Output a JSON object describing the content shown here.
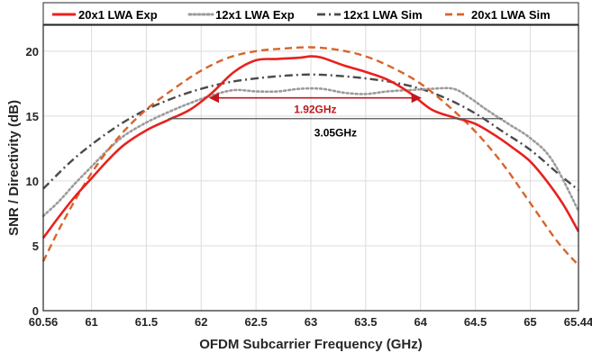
{
  "chart_data": {
    "type": "line",
    "xlabel": "OFDM Subcarrier Frequency (GHz)",
    "ylabel": "SNR / Directivity (dB)",
    "xlim": [
      60.56,
      65.44
    ],
    "ylim": [
      0,
      22
    ],
    "xticks": [
      60.56,
      61,
      61.5,
      62,
      62.5,
      63,
      63.5,
      64,
      64.5,
      65,
      65.44
    ],
    "xtick_labels": [
      "60.56",
      "61",
      "61.5",
      "62",
      "62.5",
      "63",
      "63.5",
      "64",
      "64.5",
      "65",
      "65.44"
    ],
    "yticks": [
      0,
      5,
      10,
      15,
      20
    ],
    "ytick_labels": [
      "0",
      "5",
      "10",
      "15",
      "20"
    ],
    "grid": true,
    "legend_position": "top",
    "series": [
      {
        "name": "20x1 LWA Exp",
        "color": "#e8211d",
        "style": "solid",
        "x": [
          60.56,
          60.7,
          60.85,
          61.0,
          61.15,
          61.3,
          61.5,
          61.7,
          61.9,
          62.1,
          62.3,
          62.5,
          62.7,
          62.9,
          63.0,
          63.1,
          63.3,
          63.5,
          63.7,
          63.9,
          64.1,
          64.3,
          64.5,
          64.7,
          64.85,
          65.0,
          65.15,
          65.3,
          65.44
        ],
        "y": [
          5.6,
          7.2,
          8.8,
          10.2,
          11.6,
          12.8,
          13.9,
          14.7,
          15.5,
          16.8,
          18.4,
          19.3,
          19.4,
          19.5,
          19.6,
          19.5,
          18.9,
          18.4,
          17.8,
          16.8,
          15.5,
          14.9,
          14.4,
          13.4,
          12.5,
          11.5,
          10.0,
          8.2,
          6.1
        ]
      },
      {
        "name": "12x1 LWA Exp",
        "color": "#9b9b9b",
        "style": "dotted",
        "x": [
          60.56,
          60.7,
          60.85,
          61.0,
          61.15,
          61.3,
          61.5,
          61.7,
          61.9,
          62.1,
          62.3,
          62.5,
          62.7,
          62.9,
          63.1,
          63.3,
          63.5,
          63.7,
          63.9,
          64.1,
          64.3,
          64.45,
          64.6,
          64.8,
          65.0,
          65.2,
          65.44
        ],
        "y": [
          7.3,
          8.4,
          9.8,
          11.1,
          12.4,
          13.5,
          14.5,
          15.3,
          16.0,
          16.6,
          17.0,
          16.9,
          16.9,
          17.1,
          17.1,
          16.8,
          16.7,
          16.9,
          17.0,
          17.1,
          17.1,
          16.4,
          15.5,
          14.4,
          13.3,
          11.6,
          7.7
        ]
      },
      {
        "name": "12x1 LWA Sim",
        "color": "#4a4a4a",
        "style": "dashdot",
        "x": [
          60.56,
          60.8,
          61.0,
          61.25,
          61.5,
          61.75,
          62.0,
          62.25,
          62.5,
          62.75,
          63.0,
          63.25,
          63.5,
          63.75,
          64.0,
          64.25,
          64.5,
          64.75,
          65.0,
          65.25,
          65.44
        ],
        "y": [
          9.4,
          11.4,
          12.8,
          14.3,
          15.5,
          16.4,
          17.1,
          17.6,
          17.9,
          18.1,
          18.2,
          18.1,
          17.9,
          17.6,
          17.1,
          16.3,
          15.2,
          13.8,
          12.4,
          10.6,
          9.3
        ]
      },
      {
        "name": "20x1 LWA Sim",
        "color": "#d9642a",
        "style": "dashed",
        "x": [
          60.56,
          60.75,
          61.0,
          61.25,
          61.5,
          61.75,
          62.0,
          62.25,
          62.5,
          62.75,
          63.0,
          63.25,
          63.5,
          63.75,
          64.0,
          64.25,
          64.5,
          64.75,
          65.0,
          65.25,
          65.44
        ],
        "y": [
          3.8,
          7.0,
          10.6,
          13.4,
          15.5,
          17.1,
          18.5,
          19.5,
          20.0,
          20.2,
          20.3,
          20.1,
          19.6,
          18.7,
          17.5,
          15.8,
          13.8,
          11.3,
          8.3,
          5.3,
          3.5
        ]
      }
    ],
    "annotations": [
      {
        "text": "1.92GHz",
        "color": "#c0161c",
        "x_start": 62.08,
        "x_end": 64.0,
        "y": 16.4,
        "label_y": 15.5,
        "arrow": true
      },
      {
        "text": "3.05GHz",
        "color": "#000000",
        "x_start": 61.7,
        "x_end": 64.75,
        "y": 14.8,
        "label_y": 13.7,
        "arrow": false
      }
    ]
  }
}
